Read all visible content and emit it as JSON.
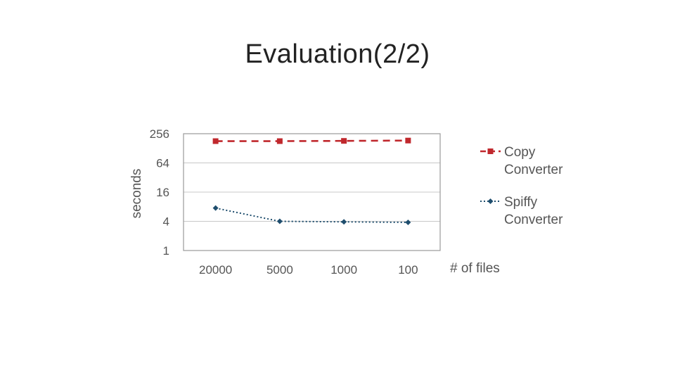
{
  "slide": {
    "title": "Evaluation(2/2)"
  },
  "chart_data": {
    "type": "line",
    "title": "",
    "ylabel": "seconds",
    "xlabel": "# of files",
    "categories": [
      "20000",
      "5000",
      "1000",
      "100"
    ],
    "y_scale": "log2",
    "y_ticks": [
      1,
      4,
      16,
      64,
      256
    ],
    "ylim": [
      1,
      256
    ],
    "grid": true,
    "legend_position": "right",
    "series": [
      {
        "name": "Copy Converter",
        "values": [
          180,
          180,
          182,
          185
        ],
        "color": "#c0282d",
        "line_style": "dashed",
        "marker": "square"
      },
      {
        "name": "Spiffy Converter",
        "values": [
          7.5,
          4.0,
          3.9,
          3.8
        ],
        "color": "#1f4e6e",
        "line_style": "dotted",
        "marker": "diamond"
      }
    ]
  }
}
